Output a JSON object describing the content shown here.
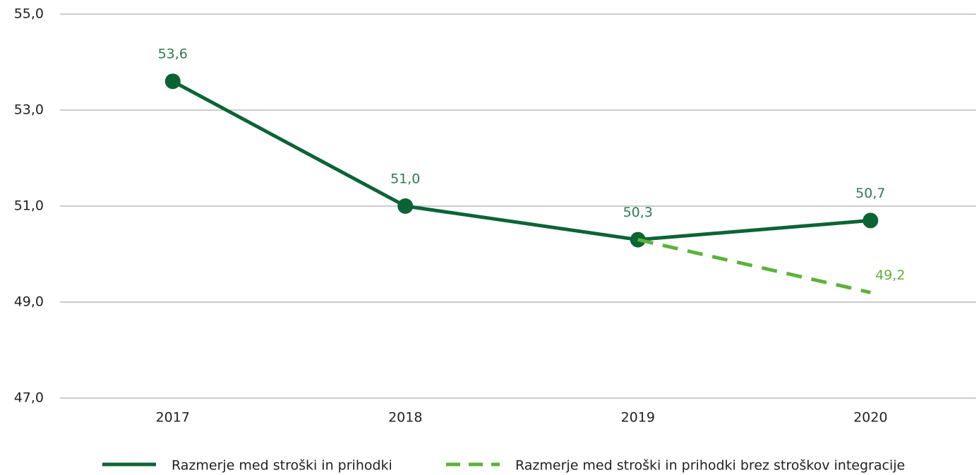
{
  "chart_data": {
    "type": "line",
    "categories": [
      "2017",
      "2018",
      "2019",
      "2020"
    ],
    "series": [
      {
        "name": "Razmerje med stroški in prihodki",
        "color": "#0b6434",
        "dash": false,
        "markers": true,
        "values": [
          53.6,
          51.0,
          50.3,
          50.7
        ],
        "value_labels": [
          "53,6",
          "51,0",
          "50,3",
          "50,7"
        ]
      },
      {
        "name": "Razmerje med stroški in prihodki brez stroškov integracije",
        "color": "#5cb23a",
        "dash": true,
        "markers": false,
        "values": [
          null,
          null,
          50.3,
          49.2
        ],
        "value_labels": [
          null,
          null,
          null,
          "49,2"
        ]
      }
    ],
    "ylim": [
      47,
      55
    ],
    "yticks": [
      {
        "value": 47,
        "label": "47,0"
      },
      {
        "value": 49,
        "label": "49,0"
      },
      {
        "value": 51,
        "label": "51,0"
      },
      {
        "value": 53,
        "label": "53,0"
      },
      {
        "value": 55,
        "label": "55,0"
      }
    ],
    "grid": true,
    "legend": "bottom"
  }
}
